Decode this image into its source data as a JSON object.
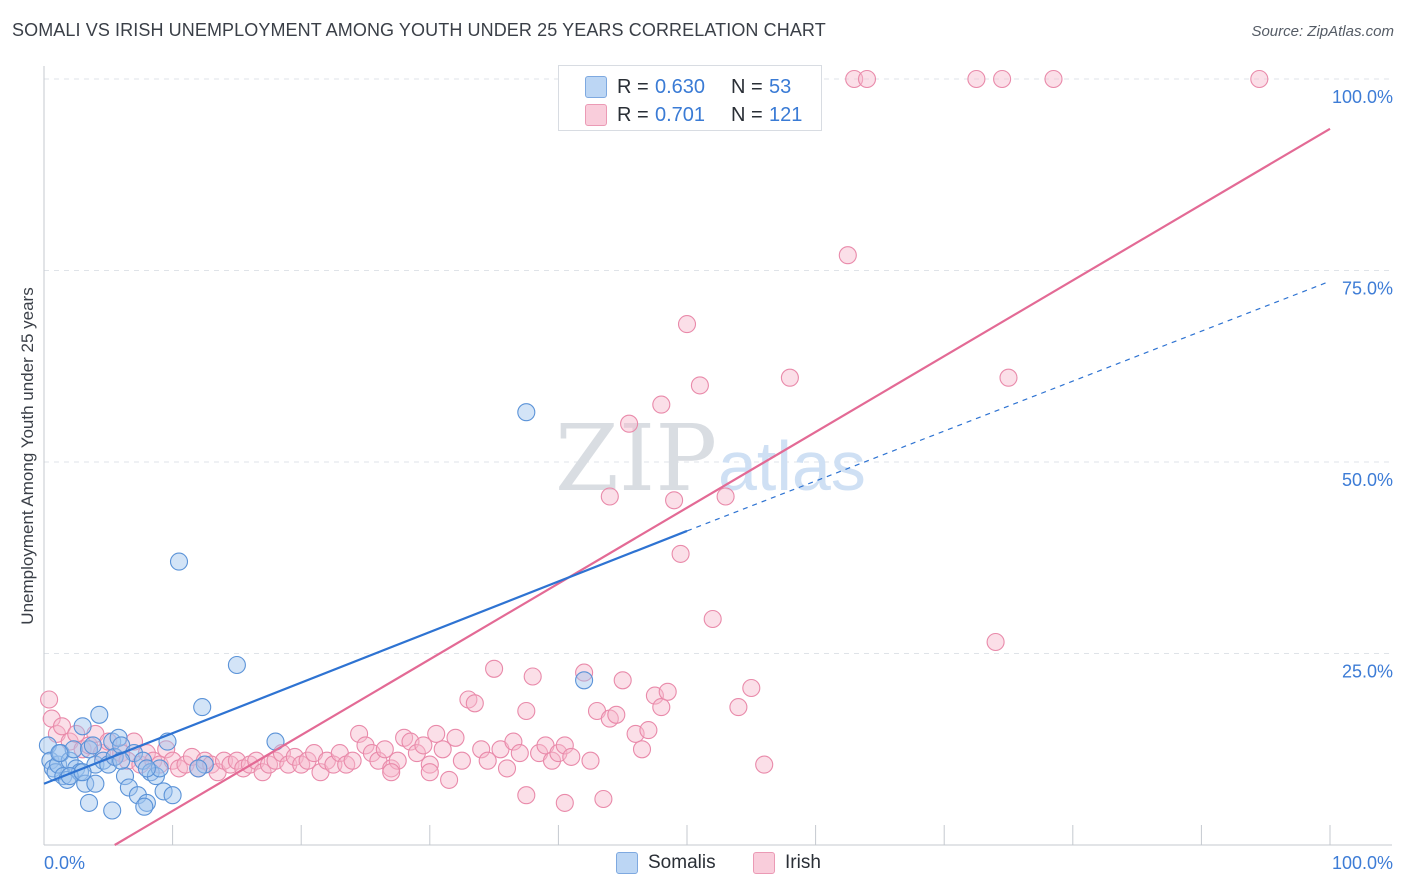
{
  "header": {
    "title": "SOMALI VS IRISH UNEMPLOYMENT AMONG YOUTH UNDER 25 YEARS CORRELATION CHART",
    "source": "Source: ZipAtlas.com"
  },
  "watermark": {
    "zip": "ZIP",
    "atlas": "atlas"
  },
  "legend_top": {
    "rows": [
      {
        "r_label": "R =",
        "r_value": "0.630",
        "n_label": "N =",
        "n_value": "53"
      },
      {
        "r_label": "R =",
        "r_value": "0.701",
        "n_label": "N =",
        "n_value": "121"
      }
    ]
  },
  "legend_bottom": {
    "items": [
      "Somalis",
      "Irish"
    ]
  },
  "colors": {
    "somalis_fill": "#9ec3ee",
    "somalis_stroke": "#5b93d8",
    "somalis_line": "#2e73d2",
    "irish_fill": "#f6b8cc",
    "irish_stroke": "#e98aaa",
    "irish_line": "#e36a95",
    "tick_label": "#3d7cd6",
    "grid": "#dfe3e8"
  },
  "chart_data": {
    "type": "scatter",
    "title": "SOMALI VS IRISH UNEMPLOYMENT AMONG YOUTH UNDER 25 YEARS CORRELATION CHART",
    "xlabel": "",
    "ylabel": "Unemployment Among Youth under 25 years",
    "xlim": [
      0,
      100
    ],
    "ylim": [
      0,
      100
    ],
    "x_tick_labels": [
      "0.0%",
      "100.0%"
    ],
    "y_tick_labels": [
      "100.0%",
      "75.0%",
      "50.0%",
      "25.0%"
    ],
    "y_ticks": [
      100,
      75,
      50,
      25
    ],
    "grid": true,
    "legend_position": "top-center and bottom",
    "series": [
      {
        "name": "Somalis",
        "r": 0.63,
        "n": 53,
        "trend": {
          "x": [
            0,
            50
          ],
          "y": [
            8.0,
            41.0
          ],
          "dashed_to": [
            100,
            73.6
          ]
        },
        "points": [
          [
            0.3,
            13.0
          ],
          [
            0.5,
            11.0
          ],
          [
            0.7,
            10.0
          ],
          [
            0.9,
            9.5
          ],
          [
            1.1,
            10.5
          ],
          [
            1.3,
            12.0
          ],
          [
            1.5,
            9.0
          ],
          [
            1.8,
            8.5
          ],
          [
            2.0,
            11.0
          ],
          [
            2.3,
            12.5
          ],
          [
            2.5,
            10.0
          ],
          [
            2.8,
            9.5
          ],
          [
            3.0,
            15.5
          ],
          [
            3.2,
            8.0
          ],
          [
            3.5,
            12.5
          ],
          [
            3.8,
            13.0
          ],
          [
            4.0,
            10.5
          ],
          [
            4.3,
            17.0
          ],
          [
            4.6,
            11.0
          ],
          [
            5.0,
            10.5
          ],
          [
            5.3,
            13.5
          ],
          [
            5.5,
            11.5
          ],
          [
            5.8,
            14.0
          ],
          [
            6.0,
            13.0
          ],
          [
            6.3,
            9.0
          ],
          [
            6.6,
            7.5
          ],
          [
            7.0,
            12.0
          ],
          [
            7.3,
            6.5
          ],
          [
            7.7,
            11.0
          ],
          [
            8.0,
            5.5
          ],
          [
            8.3,
            9.5
          ],
          [
            8.7,
            9.0
          ],
          [
            9.0,
            10.0
          ],
          [
            9.3,
            7.0
          ],
          [
            9.6,
            13.5
          ],
          [
            10.0,
            6.5
          ],
          [
            10.5,
            37.0
          ],
          [
            12.3,
            18.0
          ],
          [
            12.5,
            10.5
          ],
          [
            15.0,
            23.5
          ],
          [
            18.0,
            13.5
          ],
          [
            37.5,
            56.5
          ],
          [
            42.0,
            21.5
          ],
          [
            3.5,
            5.5
          ],
          [
            5.3,
            4.5
          ],
          [
            7.8,
            5.0
          ],
          [
            2.0,
            9.0
          ],
          [
            4.0,
            8.0
          ],
          [
            8.0,
            10.0
          ],
          [
            12.0,
            10.0
          ],
          [
            6.0,
            11.0
          ],
          [
            1.2,
            12.0
          ],
          [
            3.0,
            9.5
          ]
        ]
      },
      {
        "name": "Irish",
        "r": 0.701,
        "n": 121,
        "trend": {
          "x": [
            5.5,
            100
          ],
          "y": [
            0,
            93.5
          ]
        },
        "points": [
          [
            0.4,
            19.0
          ],
          [
            0.6,
            16.5
          ],
          [
            1.0,
            14.5
          ],
          [
            1.4,
            15.5
          ],
          [
            2.0,
            13.5
          ],
          [
            2.5,
            14.5
          ],
          [
            3.0,
            12.5
          ],
          [
            3.5,
            13.0
          ],
          [
            4.0,
            14.5
          ],
          [
            4.5,
            12.0
          ],
          [
            5.0,
            13.5
          ],
          [
            5.5,
            11.5
          ],
          [
            6.0,
            12.0
          ],
          [
            6.5,
            11.0
          ],
          [
            7.0,
            13.5
          ],
          [
            7.5,
            10.5
          ],
          [
            8.0,
            12.0
          ],
          [
            8.5,
            11.0
          ],
          [
            9.0,
            10.5
          ],
          [
            9.5,
            12.5
          ],
          [
            10.0,
            11.0
          ],
          [
            10.5,
            10.0
          ],
          [
            11.0,
            10.5
          ],
          [
            11.5,
            11.5
          ],
          [
            12.0,
            10.0
          ],
          [
            12.5,
            11.0
          ],
          [
            13.0,
            10.5
          ],
          [
            13.5,
            9.5
          ],
          [
            14.0,
            11.0
          ],
          [
            14.5,
            10.5
          ],
          [
            15.0,
            11.0
          ],
          [
            15.5,
            10.0
          ],
          [
            16.0,
            10.5
          ],
          [
            16.5,
            11.0
          ],
          [
            17.0,
            9.5
          ],
          [
            17.5,
            10.5
          ],
          [
            18.0,
            11.0
          ],
          [
            18.5,
            12.0
          ],
          [
            19.0,
            10.5
          ],
          [
            19.5,
            11.5
          ],
          [
            20.0,
            10.5
          ],
          [
            20.5,
            11.0
          ],
          [
            21.0,
            12.0
          ],
          [
            21.5,
            9.5
          ],
          [
            22.0,
            11.0
          ],
          [
            22.5,
            10.5
          ],
          [
            23.0,
            12.0
          ],
          [
            23.5,
            10.5
          ],
          [
            24.0,
            11.0
          ],
          [
            24.5,
            14.5
          ],
          [
            25.0,
            13.0
          ],
          [
            25.5,
            12.0
          ],
          [
            26.0,
            11.0
          ],
          [
            26.5,
            12.5
          ],
          [
            27.0,
            10.0
          ],
          [
            27.5,
            11.0
          ],
          [
            28.0,
            14.0
          ],
          [
            28.5,
            13.5
          ],
          [
            29.0,
            12.0
          ],
          [
            29.5,
            13.0
          ],
          [
            30.0,
            10.5
          ],
          [
            30.5,
            14.5
          ],
          [
            31.0,
            12.5
          ],
          [
            31.5,
            8.5
          ],
          [
            32.0,
            14.0
          ],
          [
            32.5,
            11.0
          ],
          [
            33.0,
            19.0
          ],
          [
            33.5,
            18.5
          ],
          [
            34.0,
            12.5
          ],
          [
            34.5,
            11.0
          ],
          [
            35.0,
            23.0
          ],
          [
            35.5,
            12.5
          ],
          [
            36.0,
            10.0
          ],
          [
            36.5,
            13.5
          ],
          [
            37.0,
            12.0
          ],
          [
            37.5,
            17.5
          ],
          [
            38.0,
            22.0
          ],
          [
            38.5,
            12.0
          ],
          [
            39.0,
            13.0
          ],
          [
            39.5,
            11.0
          ],
          [
            40.0,
            12.0
          ],
          [
            40.5,
            13.0
          ],
          [
            41.0,
            11.5
          ],
          [
            42.0,
            22.5
          ],
          [
            42.5,
            11.0
          ],
          [
            43.0,
            17.5
          ],
          [
            43.5,
            6.0
          ],
          [
            44.0,
            16.5
          ],
          [
            44.5,
            17.0
          ],
          [
            45.0,
            21.5
          ],
          [
            46.0,
            14.5
          ],
          [
            46.5,
            12.5
          ],
          [
            47.0,
            15.0
          ],
          [
            47.5,
            19.5
          ],
          [
            48.0,
            18.0
          ],
          [
            48.5,
            20.0
          ],
          [
            49.0,
            45.0
          ],
          [
            49.5,
            38.0
          ],
          [
            50.0,
            68.0
          ],
          [
            51.0,
            60.0
          ],
          [
            52.0,
            29.5
          ],
          [
            53.0,
            45.5
          ],
          [
            54.0,
            18.0
          ],
          [
            55.0,
            20.5
          ],
          [
            56.0,
            10.5
          ],
          [
            58.0,
            61.0
          ],
          [
            62.5,
            77.0
          ],
          [
            48.0,
            57.5
          ],
          [
            45.5,
            55.0
          ],
          [
            44.0,
            45.5
          ],
          [
            75.0,
            61.0
          ],
          [
            74.0,
            26.5
          ],
          [
            37.5,
            6.5
          ],
          [
            40.5,
            5.5
          ],
          [
            30.0,
            9.5
          ],
          [
            27.0,
            9.5
          ],
          [
            51.5,
            100
          ],
          [
            56.5,
            100
          ],
          [
            63.0,
            100
          ],
          [
            64.0,
            100
          ],
          [
            72.5,
            100
          ],
          [
            74.5,
            100
          ],
          [
            78.5,
            100
          ],
          [
            94.5,
            100
          ]
        ]
      }
    ]
  }
}
